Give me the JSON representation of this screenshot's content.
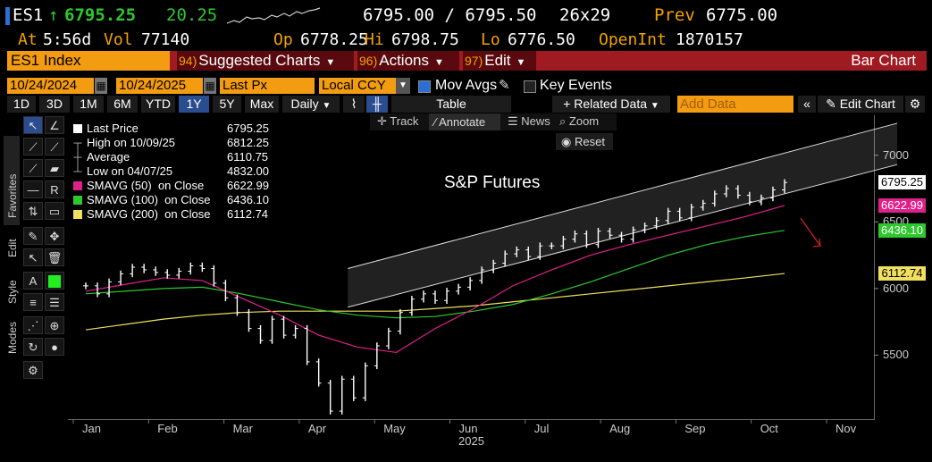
{
  "quote": {
    "ticker": "ES1",
    "arrow": "↑",
    "last": "6795.25",
    "change": "20.25",
    "bid_ask": "6795.00 / 6795.50",
    "size": "26x29",
    "prev_label": "Prev",
    "prev": "6775.00",
    "at_label": "At",
    "time": "5:56d",
    "vol_label": "Vol",
    "vol": "77140",
    "op_label": "Op",
    "op": "6778.25",
    "hi_label": "Hi",
    "hi": "6798.75",
    "lo_label": "Lo",
    "lo": "6776.50",
    "oi_label": "OpenInt",
    "oi": "1870157"
  },
  "commandbar": {
    "security": "ES1 Index",
    "menus": [
      {
        "num": "94)",
        "label": "Suggested Charts"
      },
      {
        "num": "96)",
        "label": "Actions"
      },
      {
        "num": "97)",
        "label": "Edit"
      }
    ],
    "chart_type": "Bar Chart"
  },
  "daterow": {
    "start": "10/24/2024",
    "end": "10/24/2025",
    "field": "Last Px",
    "currency": "Local CCY",
    "mov_avgs": "Mov Avgs",
    "key_events": "Key Events"
  },
  "ranges": {
    "items": [
      "1D",
      "3D",
      "1M",
      "6M",
      "YTD",
      "1Y",
      "5Y",
      "Max"
    ],
    "selected": "1Y",
    "period": "Daily",
    "table": "Table",
    "related": "Related Data",
    "add_placeholder": "Add Data",
    "edit_chart": "Edit Chart"
  },
  "annotbar": {
    "track": "Track",
    "annotate": "Annotate",
    "news": "News",
    "zoom": "Zoom",
    "reset": "Reset"
  },
  "sidebar": {
    "favorites": "Favorites",
    "edit": "Edit",
    "style": "Style",
    "modes": "Modes"
  },
  "legend": [
    {
      "label": "Last Price",
      "value": "6795.25",
      "color": "#ffffff",
      "kind": "box"
    },
    {
      "label": "High on 10/09/25",
      "value": "6812.25",
      "color": "#bbbbbb",
      "kind": "high"
    },
    {
      "label": "Average",
      "value": "6110.75",
      "color": "#bbbbbb",
      "kind": "avg"
    },
    {
      "label": "Low on 04/07/25",
      "value": "4832.00",
      "color": "#bbbbbb",
      "kind": "low"
    },
    {
      "label": "SMAVG (50)  on Close",
      "value": "6622.99",
      "color": "#e0208a",
      "kind": "box"
    },
    {
      "label": "SMAVG (100)  on Close",
      "value": "6436.10",
      "color": "#2ec72e",
      "kind": "box"
    },
    {
      "label": "SMAVG (200)  on Close",
      "value": "6112.74",
      "color": "#f0e060",
      "kind": "box"
    }
  ],
  "chart_data": {
    "type": "bar",
    "title": "S&P Futures",
    "x_axis": {
      "months": [
        "Jan",
        "Feb",
        "Mar",
        "Apr",
        "May",
        "Jun",
        "Jul",
        "Aug",
        "Sep",
        "Oct",
        "Nov"
      ],
      "year": "2025"
    },
    "y_axis": {
      "ticks": [
        5500,
        6000,
        6500,
        7000
      ],
      "range": [
        5020,
        7300
      ]
    },
    "series": [
      {
        "name": "Last Price",
        "color": "#ffffff",
        "x": [
          0,
          6,
          12,
          18,
          24,
          30,
          36,
          42,
          48,
          54,
          60,
          66,
          72,
          78,
          84,
          90,
          96,
          102,
          108,
          114,
          120,
          126,
          132,
          138,
          144,
          150,
          156,
          162,
          168,
          174,
          180,
          186,
          192,
          198,
          204,
          210,
          216,
          222,
          228,
          234,
          240,
          246,
          252,
          258,
          264,
          270,
          276,
          282,
          288,
          294,
          300,
          306,
          312,
          318,
          324,
          330,
          336,
          342,
          348,
          354,
          360
        ],
        "values": [
          6020,
          5960,
          6050,
          6110,
          6160,
          6140,
          6120,
          6100,
          6130,
          6170,
          6150,
          6040,
          5930,
          5820,
          5700,
          5610,
          5770,
          5650,
          5700,
          5450,
          5290,
          5080,
          5320,
          5180,
          5420,
          5570,
          5680,
          5820,
          5920,
          5960,
          5910,
          5980,
          6010,
          6060,
          6140,
          6190,
          6260,
          6290,
          6240,
          6320,
          6320,
          6370,
          6410,
          6330,
          6430,
          6400,
          6370,
          6440,
          6470,
          6510,
          6580,
          6530,
          6610,
          6640,
          6710,
          6750,
          6700,
          6650,
          6680,
          6740,
          6795.25
        ]
      },
      {
        "name": "SMAVG (50)",
        "color": "#e0208a",
        "x": [
          0,
          20,
          40,
          60,
          80,
          100,
          120,
          140,
          160,
          180,
          200,
          220,
          240,
          260,
          280,
          300,
          320,
          340,
          360
        ],
        "values": [
          5980,
          6030,
          6080,
          6060,
          5930,
          5800,
          5650,
          5560,
          5520,
          5700,
          5850,
          6020,
          6140,
          6250,
          6330,
          6400,
          6470,
          6540,
          6622.99
        ]
      },
      {
        "name": "SMAVG (100)",
        "color": "#2ec72e",
        "x": [
          0,
          20,
          40,
          60,
          80,
          100,
          120,
          140,
          160,
          180,
          200,
          220,
          240,
          260,
          280,
          300,
          320,
          340,
          360
        ],
        "values": [
          5960,
          5980,
          6000,
          6010,
          5960,
          5900,
          5840,
          5800,
          5780,
          5790,
          5830,
          5880,
          5960,
          6050,
          6150,
          6250,
          6330,
          6390,
          6436.1
        ]
      },
      {
        "name": "SMAVG (200)",
        "color": "#f0e060",
        "x": [
          0,
          20,
          40,
          60,
          80,
          100,
          120,
          140,
          160,
          180,
          200,
          220,
          240,
          260,
          280,
          300,
          320,
          340,
          360
        ],
        "values": [
          5690,
          5730,
          5770,
          5800,
          5820,
          5830,
          5830,
          5830,
          5830,
          5850,
          5870,
          5900,
          5930,
          5960,
          5990,
          6020,
          6050,
          6080,
          6112.74
        ]
      }
    ],
    "channel": {
      "lower": [
        [
          135,
          5860
        ],
        [
          418,
          6930
        ]
      ],
      "upper": [
        [
          135,
          6150
        ],
        [
          418,
          7240
        ]
      ]
    },
    "last_price_labels": [
      "6795.25",
      "6622.99",
      "6436.10",
      "6112.74"
    ]
  }
}
